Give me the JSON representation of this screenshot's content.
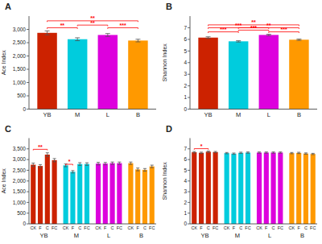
{
  "chart_data": [
    {
      "type": "bar",
      "title": "A",
      "ylabel": "Ace Index",
      "categories": [
        "YB",
        "M",
        "L",
        "B"
      ],
      "values": [
        2870,
        2630,
        2790,
        2580
      ],
      "errors": [
        75,
        55,
        55,
        50
      ],
      "colors": [
        "#cc2200",
        "#00ccdd",
        "#dd00dd",
        "#ff9900"
      ],
      "ylim": [
        0,
        3500
      ],
      "yticks": [
        0,
        500,
        {
          "value": 1000,
          "label": "1,000"
        },
        {
          "value": 1500,
          "label": "1,500"
        },
        {
          "value": 2000,
          "label": "2,000"
        },
        {
          "value": 2500,
          "label": "2,500"
        },
        {
          "value": 3000,
          "label": "3,000"
        }
      ],
      "grid": false,
      "annotations": [
        {
          "from": 0,
          "to": 1,
          "y": 3020,
          "label": "**",
          "color": "#ff0000"
        },
        {
          "from": 1,
          "to": 2,
          "y": 3120,
          "label": "**",
          "color": "#ff0000"
        },
        {
          "from": 2,
          "to": 3,
          "y": 3020,
          "label": "***",
          "color": "#ff0000"
        },
        {
          "from": 0,
          "to": 3,
          "y": 3280,
          "label": "**",
          "color": "#ff0000"
        }
      ]
    },
    {
      "type": "bar",
      "title": "B",
      "ylabel": "Shannon Index",
      "categories": [
        "YB",
        "M",
        "L",
        "B"
      ],
      "values": [
        6.15,
        5.83,
        6.38,
        5.97
      ],
      "errors": [
        0.07,
        0.06,
        0.06,
        0.06
      ],
      "colors": [
        "#cc2200",
        "#00ccdd",
        "#dd00dd",
        "#ff9900"
      ],
      "ylim": [
        0,
        8
      ],
      "yticks": [
        0,
        1,
        2,
        3,
        4,
        5,
        6,
        7
      ],
      "grid": false,
      "annotations": [
        {
          "from": 0,
          "to": 1,
          "y": 6.55,
          "label": "***",
          "color": "#ff0000"
        },
        {
          "from": 1,
          "to": 2,
          "y": 6.7,
          "label": "***",
          "color": "#ff0000"
        },
        {
          "from": 2,
          "to": 3,
          "y": 6.55,
          "label": "***",
          "color": "#ff0000"
        },
        {
          "from": 0,
          "to": 2,
          "y": 6.9,
          "label": "***",
          "color": "#ff0000"
        },
        {
          "from": 1,
          "to": 3,
          "y": 6.9,
          "label": "**",
          "color": "#ff0000"
        },
        {
          "from": 0,
          "to": 3,
          "y": 7.15,
          "label": "**",
          "color": "#ff0000"
        }
      ]
    },
    {
      "type": "bar",
      "title": "C",
      "ylabel": "Ace Index",
      "categories": [
        "CK",
        "F",
        "C",
        "FC",
        "CK",
        "F",
        "C",
        "FC",
        "CK",
        "F",
        "C",
        "FC",
        "CK",
        "F",
        "C",
        "FC"
      ],
      "group_labels": [
        "YB",
        "M",
        "L",
        "B"
      ],
      "values": [
        2760,
        2700,
        3230,
        2970,
        2730,
        2430,
        2790,
        2790,
        2810,
        2810,
        2830,
        2830,
        2830,
        2540,
        2520,
        2680
      ],
      "errors": [
        75,
        65,
        85,
        75,
        65,
        55,
        65,
        60,
        60,
        55,
        55,
        55,
        55,
        65,
        60,
        60
      ],
      "colors": [
        "#cc2200",
        "#cc2200",
        "#cc2200",
        "#cc2200",
        "#00ccdd",
        "#00ccdd",
        "#00ccdd",
        "#00ccdd",
        "#dd00dd",
        "#dd00dd",
        "#dd00dd",
        "#dd00dd",
        "#ff9900",
        "#ff9900",
        "#ff9900",
        "#ff9900"
      ],
      "ylim": [
        0,
        4000
      ],
      "yticks": [
        0,
        500,
        {
          "value": 1000,
          "label": "1,000"
        },
        {
          "value": 1500,
          "label": "1,500"
        },
        {
          "value": 2000,
          "label": "2,000"
        },
        {
          "value": 2500,
          "label": "2,500"
        },
        {
          "value": 3000,
          "label": "3,000"
        },
        {
          "value": 3500,
          "label": "3,500"
        }
      ],
      "grid": false,
      "annotations": [
        {
          "from": 0,
          "to": 2,
          "y": 3430,
          "label": "**",
          "color": "#ff0000"
        },
        {
          "from": 4,
          "to": 5,
          "y": 2730,
          "label": "*",
          "color": "#ff0000"
        }
      ]
    },
    {
      "type": "bar",
      "title": "D",
      "ylabel": "Shannon Index",
      "categories": [
        "CK",
        "F",
        "C",
        "FC",
        "CK",
        "F",
        "C",
        "FC",
        "CK",
        "F",
        "C",
        "FC",
        "CK",
        "F",
        "C",
        "FC"
      ],
      "group_labels": [
        "YB",
        "M",
        "L",
        "B"
      ],
      "values": [
        6.68,
        6.63,
        6.73,
        6.7,
        6.6,
        6.55,
        6.63,
        6.65,
        6.65,
        6.65,
        6.65,
        6.65,
        6.6,
        6.62,
        6.56,
        6.52
      ],
      "errors": [
        0.07,
        0.06,
        0.06,
        0.06,
        0.06,
        0.06,
        0.06,
        0.06,
        0.06,
        0.06,
        0.06,
        0.06,
        0.06,
        0.06,
        0.06,
        0.06
      ],
      "colors": [
        "#cc2200",
        "#cc2200",
        "#cc2200",
        "#cc2200",
        "#00ccdd",
        "#00ccdd",
        "#00ccdd",
        "#00ccdd",
        "#dd00dd",
        "#dd00dd",
        "#dd00dd",
        "#dd00dd",
        "#ff9900",
        "#ff9900",
        "#ff9900",
        "#ff9900"
      ],
      "ylim": [
        0,
        8
      ],
      "yticks": [
        0,
        1,
        2,
        3,
        4,
        5,
        6,
        7
      ],
      "grid": false,
      "annotations": [
        {
          "from": 0,
          "to": 2,
          "y": 6.92,
          "label": "*",
          "color": "#ff0000"
        }
      ]
    }
  ]
}
